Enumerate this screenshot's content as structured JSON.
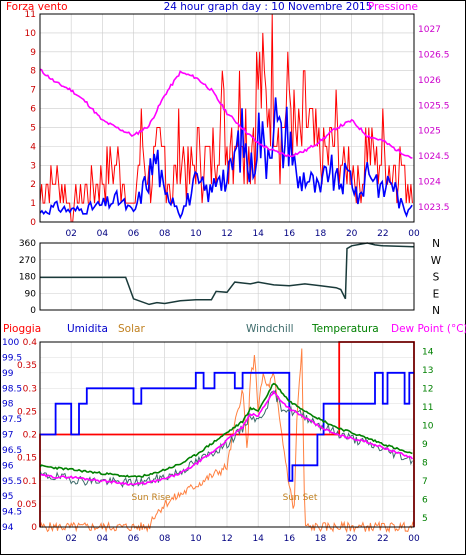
{
  "chart_data": [
    {
      "type": "line",
      "title": "24 hour graph day : 10 Novembre 2015",
      "left_label": "Forza vento",
      "right_label": "Pressione",
      "x_ticks": [
        "02",
        "04",
        "06",
        "08",
        "10",
        "12",
        "14",
        "16",
        "18",
        "20",
        "22",
        "00"
      ],
      "y_left_ticks": [
        "0",
        "1",
        "2",
        "3",
        "4",
        "5",
        "6",
        "7",
        "8",
        "9",
        "10",
        "11"
      ],
      "y_left_range": [
        0,
        11
      ],
      "y_right_ticks": [
        "1023.5",
        "1024",
        "1024.5",
        "1025",
        "1025.5",
        "1026",
        "1026.5",
        "1027"
      ],
      "y_right_range": [
        1023.2,
        1027.3
      ],
      "colors": {
        "gust": "#ff0000",
        "wind": "#0000ff",
        "pressure": "#ff00ff",
        "grid": "#cccccc"
      },
      "series": [
        {
          "key": "gust",
          "hours": [
            0,
            1,
            2,
            3,
            4,
            5,
            6,
            6.5,
            7,
            8,
            8.5,
            9,
            9.5,
            10,
            11,
            11.5,
            12,
            12.5,
            13,
            13.5,
            14,
            14.5,
            15,
            15.5,
            16,
            16.5,
            17,
            18,
            19,
            19.5,
            20,
            20.5,
            21,
            21.5,
            22,
            22.5,
            23,
            23.5,
            24
          ],
          "values": [
            2,
            3,
            1,
            2,
            3,
            4,
            1,
            6,
            3,
            5,
            2,
            6,
            3,
            5,
            4,
            8,
            6,
            7,
            9,
            5,
            10,
            8,
            11,
            6,
            9,
            5,
            7,
            4,
            6,
            3,
            5,
            2,
            6,
            4,
            5,
            3,
            5,
            2,
            4
          ]
        },
        {
          "key": "wind",
          "hours": [
            0,
            1,
            2,
            3,
            4,
            5,
            6,
            7,
            7.5,
            8,
            8.5,
            9,
            10,
            11,
            11.5,
            12,
            12.5,
            13,
            13.5,
            14,
            14.5,
            15,
            15.5,
            16,
            16.5,
            17,
            18,
            18.5,
            19,
            20,
            20.5,
            21,
            21.5,
            22,
            22.5,
            23,
            23.5,
            24
          ],
          "values": [
            0.5,
            0.8,
            0.6,
            0.7,
            0.9,
            1.2,
            0.5,
            2.5,
            3.5,
            1.2,
            1.5,
            0.4,
            2,
            1.5,
            3,
            2,
            3.5,
            4.5,
            2.5,
            5,
            3.5,
            6,
            4,
            5,
            2,
            2.5,
            1.5,
            3,
            2,
            2.5,
            1,
            3,
            2.5,
            1.5,
            2.5,
            1.2,
            0.4,
            1.8
          ]
        },
        {
          "key": "pressure",
          "hours": [
            0,
            1,
            2,
            3,
            4,
            5,
            6,
            7,
            8,
            9,
            10,
            11,
            12,
            13,
            14,
            15,
            16,
            17,
            18,
            19,
            20,
            21,
            22,
            23,
            24
          ],
          "values": [
            1026.2,
            1025.95,
            1025.8,
            1025.55,
            1025.2,
            1025.05,
            1024.9,
            1025.1,
            1025.7,
            1026.15,
            1026.05,
            1025.8,
            1025.35,
            1025.05,
            1024.75,
            1024.6,
            1024.5,
            1024.6,
            1024.8,
            1025.05,
            1025.2,
            1024.9,
            1024.8,
            1024.6,
            1024.45
          ]
        }
      ]
    },
    {
      "type": "line",
      "y_ticks": [
        "360",
        "270",
        "180",
        "90",
        "0"
      ],
      "y_range": [
        0,
        360
      ],
      "y_right_labels": [
        "N",
        "W",
        "S",
        "E",
        "N"
      ],
      "color": "#1a3a3a",
      "series": [
        {
          "key": "direction",
          "hours": [
            0,
            5.5,
            6,
            7,
            7.5,
            8,
            9,
            10,
            11,
            11.3,
            12,
            12.5,
            13,
            13.5,
            14,
            15,
            16,
            17,
            18,
            19,
            19.3,
            19.6,
            19.7,
            20,
            21,
            21.5,
            22,
            24
          ],
          "values": [
            175,
            175,
            60,
            30,
            40,
            35,
            50,
            55,
            55,
            100,
            95,
            150,
            145,
            140,
            150,
            135,
            130,
            140,
            130,
            120,
            110,
            60,
            330,
            345,
            360,
            350,
            345,
            340
          ]
        }
      ]
    },
    {
      "type": "line",
      "labels": {
        "rain": "Pioggia",
        "humidity": "Umidita",
        "solar": "Solar",
        "windchill": "Windchill",
        "temperature": "Temperatura",
        "dewpoint": "Dew Point (°C)"
      },
      "annotations": [
        "Sun Rise",
        "Sun Set"
      ],
      "y_hum_ticks": [
        "94",
        "94.5",
        "95",
        "95.5",
        "96",
        "96.5",
        "97",
        "97.5",
        "98",
        "98.5",
        "99",
        "99.5",
        "100"
      ],
      "y_hum_range": [
        94,
        100
      ],
      "y_rain_ticks": [
        "0",
        "0.05",
        "0.1",
        "0.15",
        "0.2",
        "0.25",
        "0.3",
        "0.35",
        "0.4"
      ],
      "y_rain_range": [
        0,
        0.4
      ],
      "y_temp_ticks": [
        "5",
        "6",
        "7",
        "8",
        "9",
        "10",
        "11",
        "12",
        "13",
        "14"
      ],
      "y_temp_range": [
        4.5,
        14.5
      ],
      "x_ticks": [
        "02",
        "04",
        "06",
        "08",
        "10",
        "12",
        "14",
        "16",
        "18",
        "20",
        "22",
        "00"
      ],
      "colors": {
        "rain": "#ff0000",
        "humidity": "#0000ff",
        "solar": "#ff8040",
        "windchill": "#3d6b6b",
        "temperature": "#008000",
        "dewpoint": "#ff00ff"
      },
      "series": [
        {
          "key": "rain",
          "hours": [
            0,
            0,
            19.2,
            19.2,
            24,
            24
          ],
          "values": [
            0,
            0.2,
            0.2,
            0.4,
            0.4,
            0
          ]
        },
        {
          "key": "humidity",
          "hours": [
            0,
            1,
            1,
            2,
            2,
            2.5,
            2.5,
            3,
            3,
            6,
            6,
            6.5,
            6.5,
            10,
            10,
            10.5,
            10.5,
            11.2,
            11.2,
            12.5,
            12.5,
            13,
            13,
            16,
            16,
            16.2,
            16.2,
            17.8,
            17.8,
            18.2,
            18.2,
            21.5,
            21.5,
            22,
            22,
            22.3,
            22.3,
            23.4,
            23.4,
            23.7,
            23.7,
            24
          ],
          "values": [
            97,
            97,
            98,
            98,
            97,
            97,
            98,
            98,
            98.5,
            98.5,
            98,
            98,
            98.5,
            98.5,
            99,
            99,
            98.5,
            98.5,
            99,
            99,
            98.5,
            98.5,
            99,
            99,
            95.5,
            95.5,
            96,
            96,
            97,
            97,
            98,
            98,
            99,
            99,
            98,
            98,
            99,
            99,
            98,
            98,
            99,
            99
          ]
        },
        {
          "key": "solar",
          "hours": [
            0,
            7,
            7.2,
            8,
            9,
            10,
            11,
            12,
            12.5,
            13,
            13.3,
            13.5,
            13.8,
            14,
            14.3,
            14.6,
            15,
            15.3,
            15.6,
            16,
            16.3,
            16.5,
            16.8,
            17,
            24
          ],
          "values": [
            0,
            0,
            0.02,
            0.05,
            0.07,
            0.09,
            0.11,
            0.13,
            0.22,
            0.3,
            0.16,
            0.32,
            0.37,
            0.25,
            0.33,
            0.3,
            0.33,
            0.25,
            0.18,
            0.09,
            0.03,
            0.25,
            0.38,
            0,
            0
          ]
        },
        {
          "key": "windchill",
          "hours": [
            0,
            1,
            2,
            3,
            4,
            5,
            6,
            7,
            8,
            9,
            10,
            11,
            12,
            13,
            13.5,
            14,
            14.5,
            15,
            15.5,
            16,
            17,
            18,
            19,
            20,
            21,
            22,
            23,
            24
          ],
          "values": [
            7.3,
            7.2,
            7.1,
            7,
            7,
            6.9,
            6.9,
            7,
            7.2,
            7.5,
            8,
            8.5,
            9,
            9.8,
            10.6,
            10.2,
            11,
            11.8,
            11,
            10.8,
            10.5,
            10,
            9.6,
            9.3,
            9,
            8.7,
            8.4,
            8.1
          ]
        },
        {
          "key": "temperature",
          "hours": [
            0,
            1,
            2,
            3,
            4,
            5,
            6,
            7,
            8,
            9,
            10,
            11,
            12,
            13,
            13.5,
            14,
            14.5,
            15,
            15.5,
            16,
            17,
            18,
            19,
            20,
            21,
            22,
            23,
            24
          ],
          "values": [
            7.8,
            7.7,
            7.6,
            7.5,
            7.4,
            7.3,
            7.2,
            7.3,
            7.6,
            7.9,
            8.4,
            9,
            9.6,
            10.2,
            10.9,
            10.8,
            11.5,
            12.3,
            11.8,
            11.3,
            10.8,
            10.3,
            9.9,
            9.6,
            9.3,
            9,
            8.7,
            8.4
          ]
        },
        {
          "key": "dewpoint",
          "hours": [
            0,
            1,
            2,
            3,
            4,
            5,
            6,
            7,
            8,
            9,
            10,
            11,
            12,
            13,
            13.5,
            14,
            14.5,
            15,
            15.5,
            16,
            17,
            18,
            19,
            20,
            21,
            22,
            23,
            24
          ],
          "values": [
            7.3,
            7.2,
            7.2,
            7.1,
            7,
            6.9,
            6.8,
            6.9,
            7.1,
            7.4,
            7.9,
            8.5,
            9.2,
            9.9,
            10.6,
            10.5,
            11.2,
            11.8,
            11.3,
            10.9,
            10.4,
            9.9,
            9.5,
            9.3,
            9.1,
            8.8,
            8.5,
            8.2
          ]
        }
      ]
    }
  ]
}
